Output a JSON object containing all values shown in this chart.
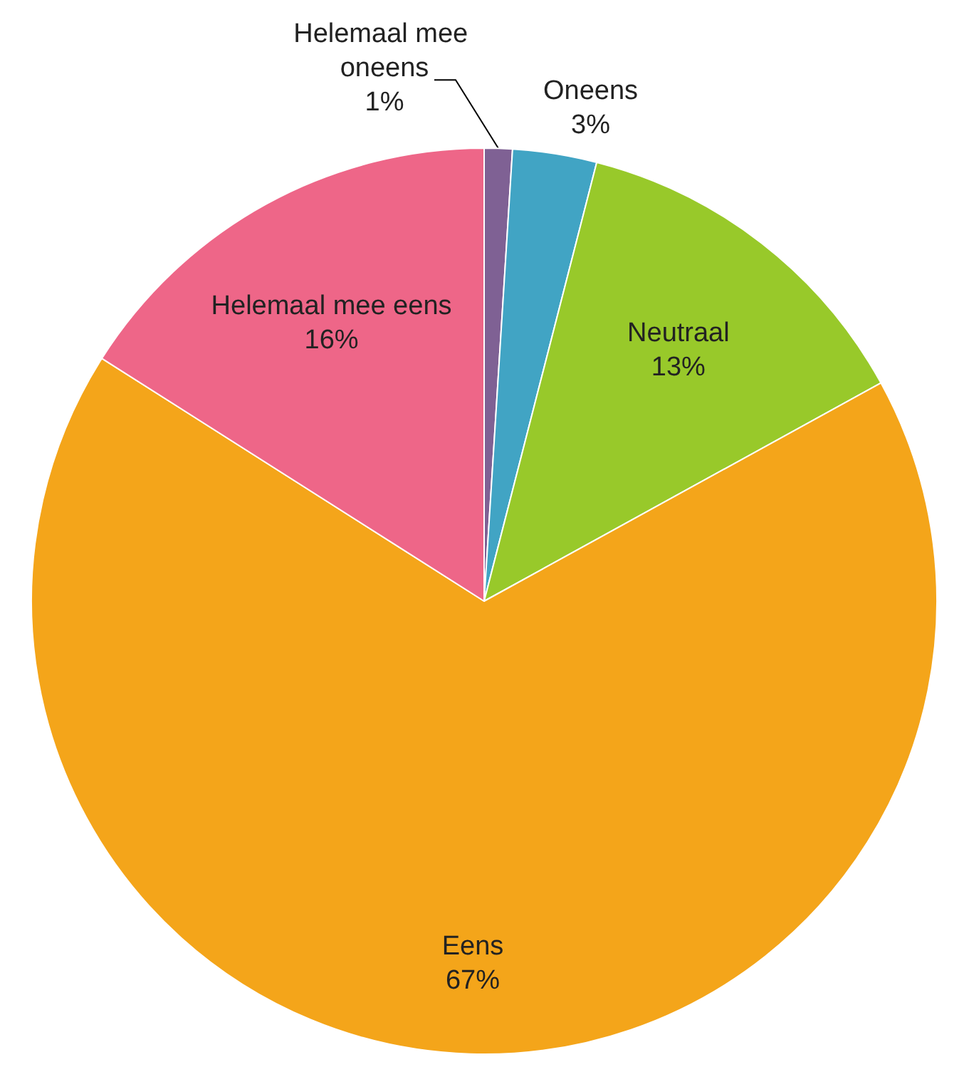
{
  "chart_data": {
    "type": "pie",
    "categories": [
      "Helemaal mee oneens",
      "Oneens",
      "Neutraal",
      "Eens",
      "Helemaal mee eens"
    ],
    "values": [
      1,
      3,
      13,
      67,
      16
    ],
    "colors": [
      "#7f6194",
      "#41a4c4",
      "#98c92a",
      "#f4a51a",
      "#ee6688"
    ],
    "value_labels": [
      "1%",
      "3%",
      "13%",
      "67%",
      "16%"
    ],
    "legend": false
  }
}
